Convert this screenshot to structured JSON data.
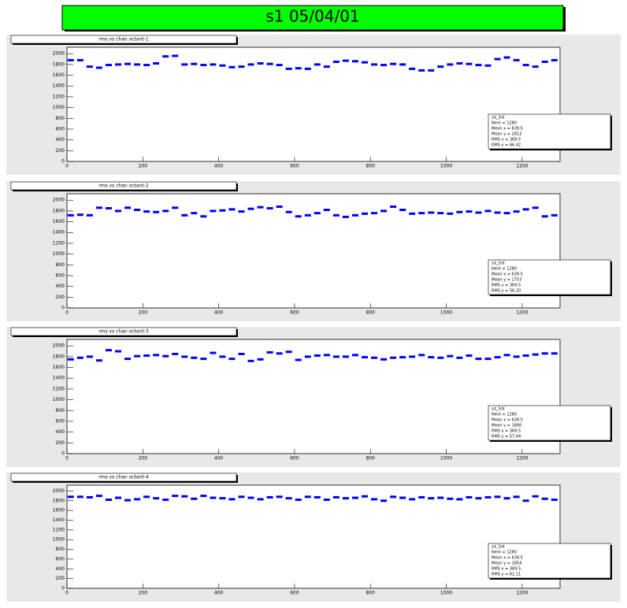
{
  "title": "s1 05/04/01",
  "chart_data": [
    {
      "type": "scatter",
      "title": "rms vs chan octant-1",
      "color": "#0000ff",
      "x": [
        10,
        35,
        60,
        85,
        110,
        135,
        160,
        185,
        210,
        235,
        260,
        285,
        310,
        335,
        360,
        385,
        410,
        435,
        460,
        485,
        510,
        535,
        560,
        585,
        610,
        635,
        660,
        685,
        710,
        735,
        760,
        785,
        810,
        835,
        860,
        885,
        910,
        935,
        960,
        985,
        1010,
        1035,
        1060,
        1085,
        1110,
        1135,
        1160,
        1185,
        1210,
        1235,
        1260,
        1285
      ],
      "values": [
        1880,
        1880,
        1760,
        1740,
        1790,
        1800,
        1810,
        1800,
        1790,
        1820,
        1950,
        1960,
        1800,
        1810,
        1790,
        1800,
        1780,
        1750,
        1760,
        1800,
        1820,
        1810,
        1790,
        1720,
        1730,
        1720,
        1800,
        1760,
        1850,
        1870,
        1860,
        1840,
        1800,
        1790,
        1810,
        1800,
        1720,
        1690,
        1690,
        1760,
        1800,
        1820,
        1810,
        1790,
        1780,
        1900,
        1930,
        1880,
        1790,
        1760,
        1850,
        1880
      ],
      "xlim": [
        0,
        1300
      ],
      "ylim": [
        0,
        2120
      ],
      "xticks": [
        0,
        200,
        400,
        600,
        800,
        1000,
        1200
      ],
      "yticks": [
        0,
        200,
        400,
        600,
        800,
        1000,
        1200,
        1400,
        1600,
        1800,
        2000
      ],
      "stats": [
        "sd_3rd",
        "Nent = 1280",
        "Mean x = 639.5",
        "Mean y = 1813",
        "RMS x = 369.5",
        "RMS y = 66.42"
      ]
    },
    {
      "type": "scatter",
      "title": "rms vs chan octant-2",
      "color": "#0000ff",
      "x": [
        10,
        35,
        60,
        85,
        110,
        135,
        160,
        185,
        210,
        235,
        260,
        285,
        310,
        335,
        360,
        385,
        410,
        435,
        460,
        485,
        510,
        535,
        560,
        585,
        610,
        635,
        660,
        685,
        710,
        735,
        760,
        785,
        810,
        835,
        860,
        885,
        910,
        935,
        960,
        985,
        1010,
        1035,
        1060,
        1085,
        1110,
        1135,
        1160,
        1185,
        1210,
        1235,
        1260,
        1285
      ],
      "values": [
        1720,
        1730,
        1720,
        1860,
        1850,
        1800,
        1860,
        1820,
        1790,
        1780,
        1800,
        1860,
        1720,
        1760,
        1700,
        1800,
        1810,
        1830,
        1790,
        1840,
        1870,
        1850,
        1880,
        1780,
        1700,
        1720,
        1760,
        1820,
        1720,
        1690,
        1720,
        1750,
        1760,
        1800,
        1880,
        1820,
        1750,
        1760,
        1770,
        1760,
        1750,
        1780,
        1790,
        1770,
        1800,
        1770,
        1760,
        1790,
        1830,
        1860,
        1700,
        1720
      ],
      "xlim": [
        0,
        1300
      ],
      "ylim": [
        0,
        2120
      ],
      "xticks": [
        0,
        200,
        400,
        600,
        800,
        1000,
        1200
      ],
      "yticks": [
        0,
        200,
        400,
        600,
        800,
        1000,
        1200,
        1400,
        1600,
        1800,
        2000
      ],
      "stats": [
        "sd_3rd",
        "Nent = 1280",
        "Mean x = 639.5",
        "Mean y = 1753",
        "RMS x = 369.5",
        "RMS y = 56.20"
      ]
    },
    {
      "type": "scatter",
      "title": "rms vs chan octant-3",
      "color": "#0000ff",
      "x": [
        10,
        35,
        60,
        85,
        110,
        135,
        160,
        185,
        210,
        235,
        260,
        285,
        310,
        335,
        360,
        385,
        410,
        435,
        460,
        485,
        510,
        535,
        560,
        585,
        610,
        635,
        660,
        685,
        710,
        735,
        760,
        785,
        810,
        835,
        860,
        885,
        910,
        935,
        960,
        985,
        1010,
        1035,
        1060,
        1085,
        1110,
        1135,
        1160,
        1185,
        1210,
        1235,
        1260,
        1285
      ],
      "values": [
        1750,
        1780,
        1800,
        1730,
        1920,
        1900,
        1760,
        1810,
        1820,
        1830,
        1810,
        1850,
        1800,
        1780,
        1760,
        1870,
        1800,
        1760,
        1850,
        1720,
        1750,
        1880,
        1860,
        1890,
        1740,
        1800,
        1820,
        1830,
        1800,
        1800,
        1830,
        1790,
        1780,
        1750,
        1780,
        1790,
        1800,
        1830,
        1790,
        1780,
        1810,
        1780,
        1820,
        1760,
        1760,
        1790,
        1830,
        1800,
        1820,
        1840,
        1860,
        1860
      ],
      "xlim": [
        0,
        1300
      ],
      "ylim": [
        0,
        2120
      ],
      "xticks": [
        0,
        200,
        400,
        600,
        800,
        1000,
        1200
      ],
      "yticks": [
        0,
        200,
        400,
        600,
        800,
        1000,
        1200,
        1400,
        1600,
        1800,
        2000
      ],
      "stats": [
        "sd_3rd",
        "Nent = 1280",
        "Mean x = 639.5",
        "Mean y = 1800",
        "RMS x = 369.5",
        "RMS y = 57.04"
      ]
    },
    {
      "type": "scatter",
      "title": "rms vs chan octant-4",
      "color": "#0000ff",
      "x": [
        10,
        35,
        60,
        85,
        110,
        135,
        160,
        185,
        210,
        235,
        260,
        285,
        310,
        335,
        360,
        385,
        410,
        435,
        460,
        485,
        510,
        535,
        560,
        585,
        610,
        635,
        660,
        685,
        710,
        735,
        760,
        785,
        810,
        835,
        860,
        885,
        910,
        935,
        960,
        985,
        1010,
        1035,
        1060,
        1085,
        1110,
        1135,
        1160,
        1185,
        1210,
        1235,
        1260,
        1285
      ],
      "values": [
        1880,
        1880,
        1870,
        1900,
        1820,
        1860,
        1810,
        1830,
        1880,
        1850,
        1820,
        1900,
        1890,
        1840,
        1900,
        1860,
        1850,
        1830,
        1880,
        1860,
        1830,
        1870,
        1880,
        1850,
        1820,
        1880,
        1870,
        1820,
        1870,
        1850,
        1860,
        1890,
        1830,
        1800,
        1880,
        1860,
        1830,
        1870,
        1850,
        1860,
        1840,
        1830,
        1870,
        1850,
        1870,
        1880,
        1850,
        1880,
        1800,
        1890,
        1840,
        1820
      ],
      "xlim": [
        0,
        1300
      ],
      "ylim": [
        0,
        2120
      ],
      "xticks": [
        0,
        200,
        400,
        600,
        800,
        1000,
        1200
      ],
      "yticks": [
        0,
        200,
        400,
        600,
        800,
        1000,
        1200,
        1400,
        1600,
        1800,
        2000
      ],
      "stats": [
        "sd_3rd",
        "Nent = 1280",
        "Mean x = 639.5",
        "Mean y = 1854",
        "RMS x = 369.5",
        "RMS y = 61.11"
      ]
    }
  ]
}
